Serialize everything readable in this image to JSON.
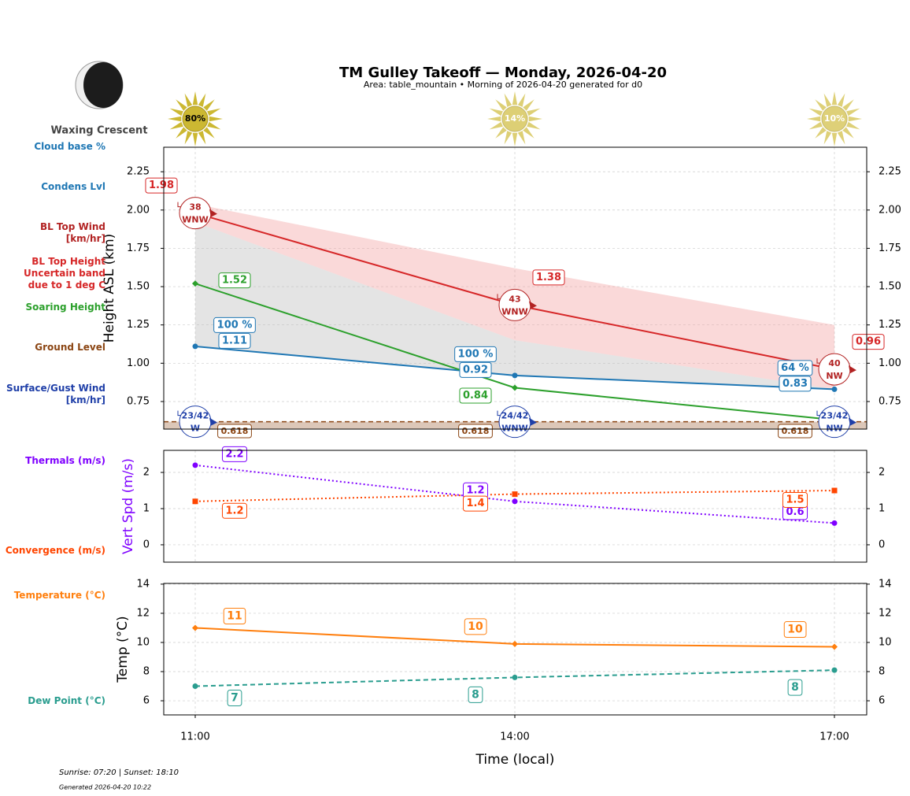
{
  "header": {
    "title": "TM Gulley Takeoff — Monday, 2026-04-20",
    "subtitle": "Area: table_mountain • Morning of 2026-04-20 generated for d0",
    "moon_phase": "Waxing Crescent"
  },
  "footer": {
    "sun_times": "Sunrise: 07:20 | Sunset: 18:10",
    "generated": "Generated 2026-04-20 10:22"
  },
  "chart_data": [
    {
      "type": "line",
      "x": [
        "11:00",
        "14:00",
        "17:00"
      ],
      "xlabel": "Time (local)",
      "ylabel": "Height ASL (km)",
      "ylim": [
        0.57,
        2.41
      ],
      "yticks": [
        0.75,
        {
          "value": 1,
          "label": "1.00"
        },
        1.25,
        {
          "value": 1.5,
          "label": "1.50"
        },
        1.75,
        {
          "value": 2,
          "label": "2.00"
        },
        2.25
      ],
      "grid": true,
      "sun": {
        "color": "#c8b21e",
        "values": [
          80,
          14,
          10
        ],
        "value_labels": [
          "80%",
          "14%",
          "10%"
        ]
      },
      "cloud_base": {
        "name": "Cloud base %",
        "color": "#1f77b4",
        "values": [
          100,
          100,
          64
        ],
        "value_labels": [
          "100 %",
          "100 %",
          "64 %"
        ]
      },
      "series": [
        {
          "name": "Condens Lvl",
          "color": "#1f77b4",
          "values": [
            1.11,
            0.92,
            0.83
          ],
          "marker": "circle",
          "style": "solid"
        },
        {
          "name": "BL Top Height\nUncertain band\ndue to 1 deg C",
          "color": "#d62728",
          "values": [
            1.98,
            1.38,
            0.96
          ],
          "band_upper": [
            2.04,
            1.62,
            1.25
          ],
          "band_lower": [
            1.92,
            1.15,
            0.83
          ],
          "band_color": "#f2a0a0",
          "marker": "circle",
          "style": "solid"
        },
        {
          "name": "Soaring Height",
          "color": "#2ca02c",
          "values": [
            1.52,
            0.84,
            0.63
          ],
          "value_labels": [
            "1.52",
            "0.84",
            null
          ],
          "marker": "diamond",
          "style": "solid"
        },
        {
          "name": "Ground Level",
          "color": "#8b4513",
          "values": [
            0.618,
            0.618,
            0.618
          ],
          "marker": "none",
          "style": "dashed"
        }
      ],
      "bl_top_wind": {
        "name": "BL Top Wind\n[km/hr]",
        "color": "#b22222",
        "speed": [
          38,
          43,
          40
        ],
        "direction": [
          "WNW",
          "WNW",
          "NW"
        ]
      },
      "surface_wind": {
        "name": "Surface/Gust Wind\n[km/hr]",
        "color": "#1f3fa8",
        "speed_gust": [
          "23/42",
          "24/42",
          "23/42"
        ],
        "direction": [
          "W",
          "WNW",
          "NW"
        ]
      }
    },
    {
      "type": "line",
      "ylabel": "Vert Spd (m/s)",
      "ylabel_color": "#7f00ff",
      "ylim": [
        -0.48,
        2.61
      ],
      "yticks": [
        0,
        1,
        2
      ],
      "grid": true,
      "series": [
        {
          "name": "Thermals (m/s)",
          "color": "#7f00ff",
          "values": [
            2.2,
            1.2,
            0.6
          ],
          "marker": "circle",
          "style": "dotted",
          "label_side": "above"
        },
        {
          "name": "Convergence (m/s)",
          "color": "#ff4500",
          "values": [
            1.2,
            1.4,
            1.5
          ],
          "marker": "square",
          "style": "dotted",
          "label_side": "below"
        }
      ]
    },
    {
      "type": "line",
      "ylabel": "Temp (°C)",
      "ylim": [
        5.03,
        14.05
      ],
      "yticks": [
        6,
        8,
        10,
        12,
        14
      ],
      "grid": true,
      "series": [
        {
          "name": "Temperature (°C)",
          "color": "#ff7f0e",
          "values": [
            11.0,
            9.9,
            9.7
          ],
          "value_labels": [
            "11",
            "10",
            "10"
          ],
          "marker": "diamond",
          "style": "solid",
          "label_side": "above"
        },
        {
          "name": "Dew Point (°C)",
          "color": "#2a9d8f",
          "values": [
            7.0,
            7.6,
            8.1
          ],
          "value_labels": [
            "7",
            "8",
            "8"
          ],
          "marker": "circle",
          "style": "dashed",
          "label_side": "below"
        }
      ]
    }
  ]
}
